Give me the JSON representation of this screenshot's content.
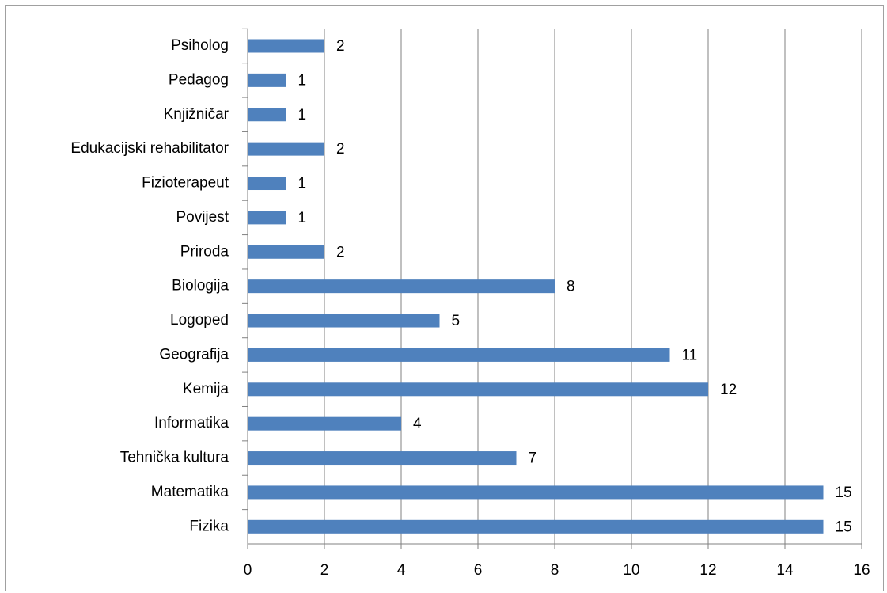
{
  "chart_data": {
    "type": "bar",
    "orientation": "horizontal",
    "categories": [
      "Psiholog",
      "Pedagog",
      "Knjižničar",
      "Edukacijski rehabilitator",
      "Fizioterapeut",
      "Povijest",
      "Priroda",
      "Biologija",
      "Logoped",
      "Geografija",
      "Kemija",
      "Informatika",
      "Tehnička kultura",
      "Matematika",
      "Fizika"
    ],
    "values": [
      2,
      1,
      1,
      2,
      1,
      1,
      2,
      8,
      5,
      11,
      12,
      4,
      7,
      15,
      15
    ],
    "color": "#4f81bd",
    "xlim": [
      0,
      16
    ],
    "xticks": [
      0,
      2,
      4,
      6,
      8,
      10,
      12,
      14,
      16
    ],
    "grid": true
  }
}
